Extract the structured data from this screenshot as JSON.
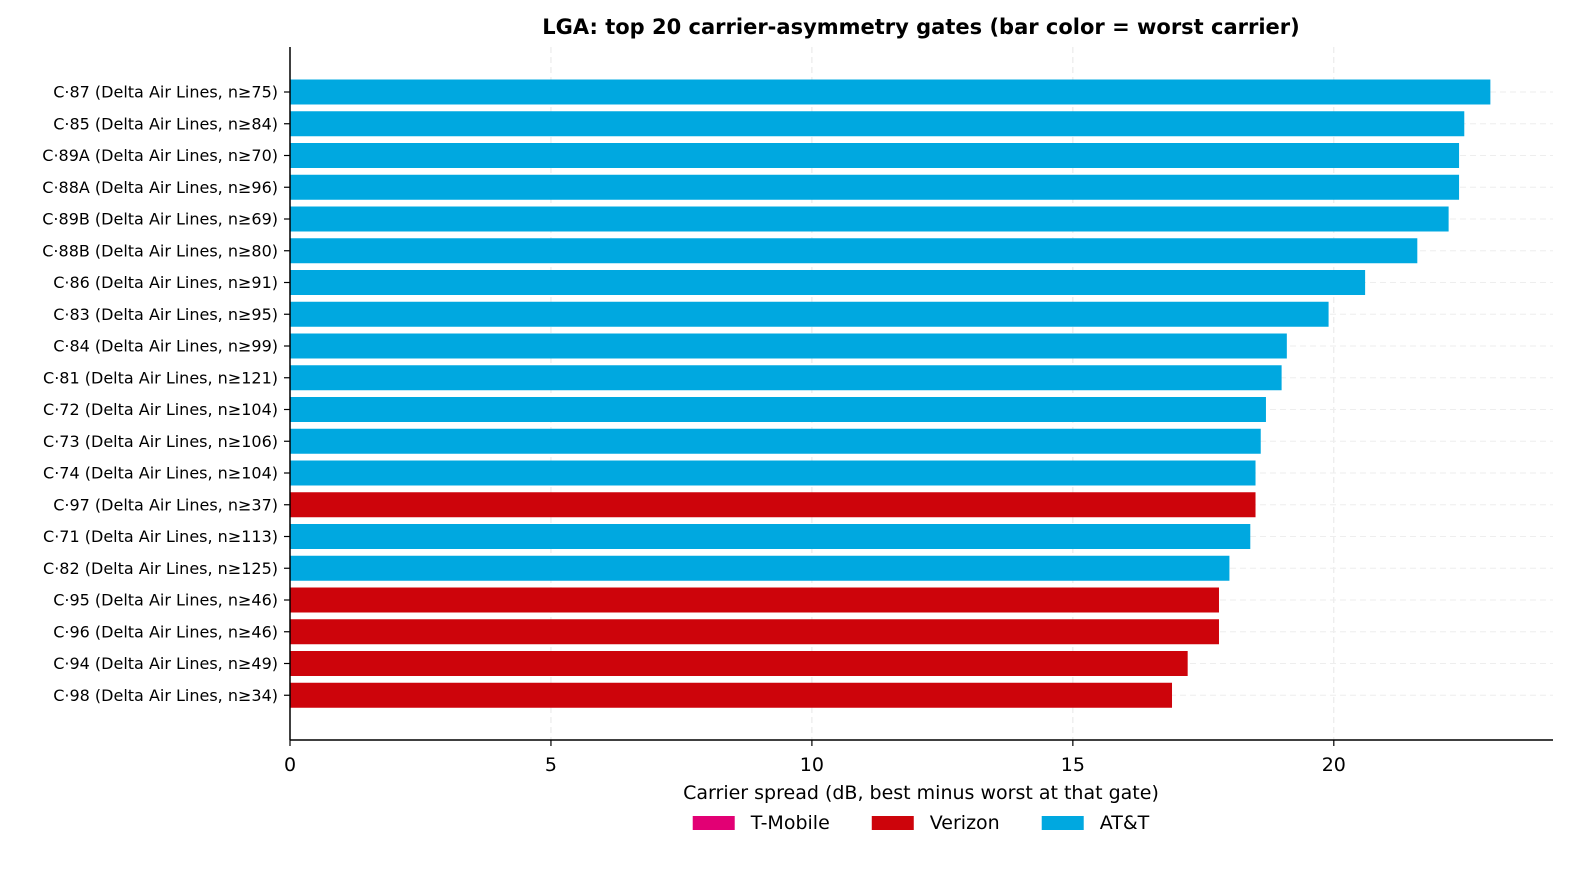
{
  "chart_data": {
    "type": "bar",
    "orientation": "horizontal",
    "title": "LGA: top 20 carrier-asymmetry gates (bar color = worst carrier)",
    "xlabel": "Carrier spread (dB, best minus worst at that gate)",
    "ylabel": "",
    "xlim": [
      0,
      24.2
    ],
    "xticks": [
      0,
      5,
      10,
      15,
      20
    ],
    "grid": "x dashed",
    "legend_position": "bottom-center",
    "carrier_colors": {
      "T-Mobile": "#e20074",
      "Verizon": "#cd040b",
      "AT&T": "#00a8e0"
    },
    "legend": [
      "T-Mobile",
      "Verizon",
      "AT&T"
    ],
    "categories": [
      "C·87 (Delta Air Lines, n≥75)",
      "C·85 (Delta Air Lines, n≥84)",
      "C·89A (Delta Air Lines, n≥70)",
      "C·88A (Delta Air Lines, n≥96)",
      "C·89B (Delta Air Lines, n≥69)",
      "C·88B (Delta Air Lines, n≥80)",
      "C·86 (Delta Air Lines, n≥91)",
      "C·83 (Delta Air Lines, n≥95)",
      "C·84 (Delta Air Lines, n≥99)",
      "C·81 (Delta Air Lines, n≥121)",
      "C·72 (Delta Air Lines, n≥104)",
      "C·73 (Delta Air Lines, n≥106)",
      "C·74 (Delta Air Lines, n≥104)",
      "C·97 (Delta Air Lines, n≥37)",
      "C·71 (Delta Air Lines, n≥113)",
      "C·82 (Delta Air Lines, n≥125)",
      "C·95 (Delta Air Lines, n≥46)",
      "C·96 (Delta Air Lines, n≥46)",
      "C·94 (Delta Air Lines, n≥49)",
      "C·98 (Delta Air Lines, n≥34)"
    ],
    "values": [
      23.0,
      22.5,
      22.4,
      22.4,
      22.2,
      21.6,
      20.6,
      19.9,
      19.1,
      19.0,
      18.7,
      18.6,
      18.5,
      18.5,
      18.4,
      18.0,
      17.8,
      17.8,
      17.2,
      16.9
    ],
    "worst_carrier": [
      "AT&T",
      "AT&T",
      "AT&T",
      "AT&T",
      "AT&T",
      "AT&T",
      "AT&T",
      "AT&T",
      "AT&T",
      "AT&T",
      "AT&T",
      "AT&T",
      "AT&T",
      "Verizon",
      "AT&T",
      "AT&T",
      "Verizon",
      "Verizon",
      "Verizon",
      "Verizon"
    ]
  }
}
